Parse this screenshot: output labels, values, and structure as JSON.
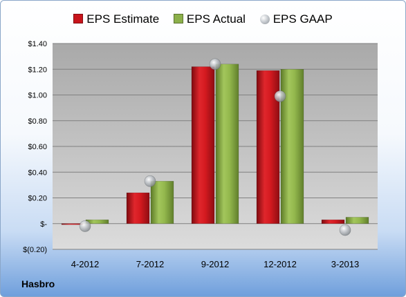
{
  "company": "Hasbro",
  "chart_data": {
    "type": "bar",
    "categories": [
      "4-2012",
      "7-2012",
      "9-2012",
      "12-2012",
      "3-2013"
    ],
    "series": [
      {
        "name": "EPS Estimate",
        "values": [
          0.0,
          0.24,
          1.22,
          1.19,
          0.03
        ],
        "color": "#c8141b"
      },
      {
        "name": "EPS Actual",
        "values": [
          0.03,
          0.33,
          1.24,
          1.2,
          0.05
        ],
        "color": "#8cb04a"
      },
      {
        "name": "EPS GAAP",
        "values": [
          -0.02,
          0.33,
          1.24,
          0.99,
          -0.05
        ],
        "color": "#a0a4a8",
        "marker": "sphere"
      }
    ],
    "yticks": [
      "$(0.20)",
      "$-",
      "$0.20",
      "$0.40",
      "$0.60",
      "$0.80",
      "$1.00",
      "$1.20",
      "$1.40"
    ],
    "ytick_values": [
      -0.2,
      0.0,
      0.2,
      0.4,
      0.6,
      0.8,
      1.0,
      1.2,
      1.4
    ],
    "ylim": [
      -0.2,
      1.4
    ],
    "grid": true,
    "legend": "top-center"
  }
}
